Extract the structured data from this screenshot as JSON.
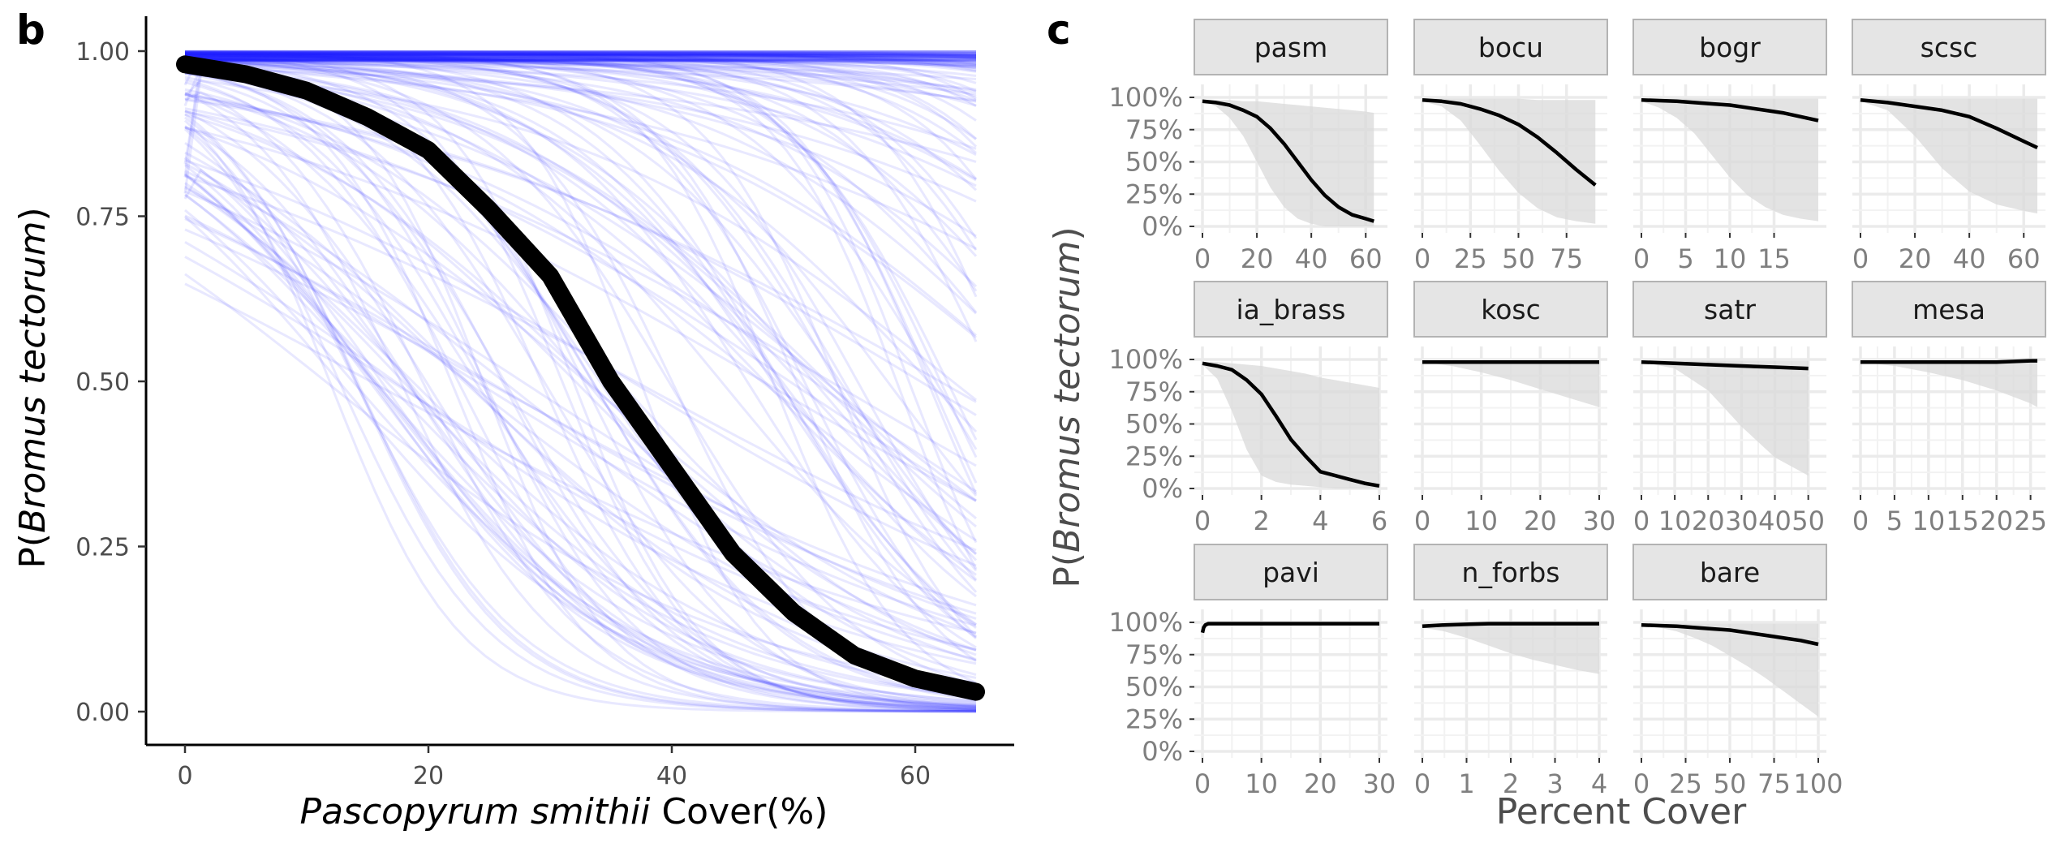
{
  "panel_b": {
    "letter": "b",
    "x_axis_label": {
      "species": "Pascopyrum smithii",
      "suffix": " Cover(%)"
    },
    "y_axis_label": {
      "prefix": "P(",
      "species": "Bromus tectorum",
      "suffix": ")"
    }
  },
  "panel_c": {
    "letter": "c",
    "x_axis_label": "Percent Cover",
    "y_axis_label": {
      "prefix": "P(",
      "species": "Bromus tectorum",
      "suffix": ")"
    }
  },
  "chart_data": [
    {
      "type": "line",
      "panel": "b",
      "xlabel": "Pascopyrum smithii Cover(%)",
      "ylabel": "P(Bromus tectorum)",
      "xlim": [
        0,
        65
      ],
      "ylim": [
        0,
        1
      ],
      "x_ticks": [
        "0",
        "20",
        "40",
        "60"
      ],
      "y_ticks": [
        "0.00",
        "0.25",
        "0.50",
        "0.75",
        "1.00"
      ],
      "colors": {
        "draws": "#1f1fff",
        "mean": "#000000"
      },
      "posterior_draws": {
        "count": 200,
        "color": "#1f1fff",
        "opacity": 0.1,
        "seed": 7
      },
      "mean_curve": {
        "x": [
          0,
          5,
          10,
          15,
          20,
          25,
          30,
          35,
          40,
          45,
          50,
          55,
          60,
          65
        ],
        "y": [
          0.98,
          0.965,
          0.94,
          0.9,
          0.85,
          0.76,
          0.66,
          0.5,
          0.37,
          0.24,
          0.15,
          0.085,
          0.05,
          0.03
        ]
      }
    },
    {
      "type": "line",
      "panel": "c",
      "layout": "facet-grid-3x4",
      "xlabel": "Percent Cover",
      "ylabel": "P(Bromus tectorum)",
      "ylim": [
        0,
        1
      ],
      "y_ticks": [
        "0%",
        "25%",
        "50%",
        "75%",
        "100%"
      ],
      "colors": {
        "strip": "#e5e5e5",
        "ribbon": "#d9d9d9",
        "line": "#000000"
      },
      "facets": [
        {
          "name": "pasm",
          "xlim": [
            0,
            65
          ],
          "x_ticks": [
            0,
            20,
            40,
            60
          ],
          "x_tick_labels": [
            "0",
            "20",
            "40",
            "60"
          ],
          "x": [
            0,
            5,
            10,
            15,
            20,
            25,
            30,
            35,
            40,
            45,
            50,
            55,
            60,
            63
          ],
          "y": [
            0.97,
            0.96,
            0.94,
            0.9,
            0.85,
            0.76,
            0.64,
            0.5,
            0.36,
            0.24,
            0.15,
            0.09,
            0.06,
            0.04
          ],
          "lower": [
            0.97,
            0.93,
            0.84,
            0.7,
            0.5,
            0.3,
            0.15,
            0.06,
            0.02,
            0.0,
            0.0,
            0.0,
            0.0,
            0.0
          ],
          "upper": [
            0.98,
            0.98,
            0.98,
            0.97,
            0.97,
            0.96,
            0.95,
            0.94,
            0.93,
            0.92,
            0.91,
            0.9,
            0.89,
            0.88
          ]
        },
        {
          "name": "bocu",
          "xlim": [
            0,
            92
          ],
          "x_ticks": [
            0,
            25,
            50,
            75
          ],
          "x_tick_labels": [
            "0",
            "25",
            "50",
            "75"
          ],
          "x": [
            0,
            10,
            20,
            30,
            40,
            50,
            60,
            70,
            80,
            90
          ],
          "y": [
            0.98,
            0.97,
            0.95,
            0.91,
            0.86,
            0.79,
            0.69,
            0.57,
            0.44,
            0.32
          ],
          "lower": [
            0.97,
            0.93,
            0.82,
            0.63,
            0.43,
            0.26,
            0.14,
            0.07,
            0.04,
            0.02
          ],
          "upper": [
            0.99,
            0.99,
            0.99,
            0.99,
            0.99,
            0.99,
            0.98,
            0.98,
            0.98,
            0.98
          ]
        },
        {
          "name": "bogr",
          "xlim": [
            0,
            20
          ],
          "x_ticks": [
            0,
            5,
            10,
            15
          ],
          "x_tick_labels": [
            "0",
            "5",
            "10",
            "15"
          ],
          "x": [
            0,
            2,
            4,
            6,
            8,
            10,
            12,
            14,
            16,
            18,
            20
          ],
          "y": [
            0.98,
            0.975,
            0.97,
            0.96,
            0.95,
            0.94,
            0.92,
            0.9,
            0.88,
            0.85,
            0.82
          ],
          "lower": [
            0.97,
            0.92,
            0.84,
            0.72,
            0.55,
            0.38,
            0.24,
            0.15,
            0.09,
            0.06,
            0.04
          ],
          "upper": [
            0.99,
            0.99,
            0.99,
            0.99,
            0.99,
            0.99,
            0.99,
            0.99,
            0.99,
            0.99,
            0.99
          ]
        },
        {
          "name": "scsc",
          "xlim": [
            0,
            65
          ],
          "x_ticks": [
            0,
            20,
            40,
            60
          ],
          "x_tick_labels": [
            "0",
            "20",
            "40",
            "60"
          ],
          "x": [
            0,
            10,
            20,
            30,
            40,
            50,
            60,
            65
          ],
          "y": [
            0.98,
            0.96,
            0.93,
            0.9,
            0.85,
            0.76,
            0.66,
            0.61
          ],
          "lower": [
            0.97,
            0.9,
            0.7,
            0.45,
            0.27,
            0.17,
            0.12,
            0.1
          ],
          "upper": [
            0.99,
            0.99,
            0.99,
            0.99,
            0.99,
            0.99,
            0.99,
            0.99
          ]
        },
        {
          "name": "ia_brass",
          "xlim": [
            0,
            6
          ],
          "x_ticks": [
            0,
            2,
            4,
            6
          ],
          "x_tick_labels": [
            "0",
            "2",
            "4",
            "6"
          ],
          "x": [
            0,
            0.5,
            1,
            1.5,
            2,
            2.5,
            3,
            3.5,
            4,
            4.5,
            5,
            5.5,
            6
          ],
          "y": [
            0.97,
            0.95,
            0.92,
            0.84,
            0.73,
            0.56,
            0.38,
            0.25,
            0.13,
            0.1,
            0.07,
            0.04,
            0.02
          ],
          "lower": [
            0.96,
            0.85,
            0.6,
            0.3,
            0.1,
            0.05,
            0.03,
            0.02,
            0.01,
            0.0,
            0.0,
            0.0,
            0.0
          ],
          "upper": [
            0.98,
            0.98,
            0.97,
            0.96,
            0.95,
            0.93,
            0.91,
            0.89,
            0.86,
            0.84,
            0.82,
            0.8,
            0.78
          ]
        },
        {
          "name": "kosc",
          "xlim": [
            0,
            30
          ],
          "x_ticks": [
            0,
            10,
            20,
            30
          ],
          "x_tick_labels": [
            "0",
            "10",
            "20",
            "30"
          ],
          "x": [
            0,
            5,
            10,
            15,
            20,
            25,
            30
          ],
          "y": [
            0.98,
            0.98,
            0.98,
            0.98,
            0.98,
            0.98,
            0.98
          ],
          "lower": [
            0.98,
            0.95,
            0.9,
            0.84,
            0.77,
            0.7,
            0.63
          ],
          "upper": [
            0.99,
            0.99,
            0.99,
            0.99,
            0.99,
            0.99,
            0.99
          ]
        },
        {
          "name": "satr",
          "xlim": [
            0,
            53
          ],
          "x_ticks": [
            0,
            10,
            20,
            30,
            40,
            50
          ],
          "x_tick_labels": [
            "0",
            "10",
            "20",
            "30",
            "40",
            "50"
          ],
          "x": [
            0,
            10,
            20,
            30,
            40,
            50
          ],
          "y": [
            0.98,
            0.97,
            0.96,
            0.95,
            0.94,
            0.93
          ],
          "lower": [
            0.98,
            0.93,
            0.76,
            0.48,
            0.24,
            0.1
          ],
          "upper": [
            0.99,
            0.99,
            0.99,
            0.99,
            0.99,
            0.99
          ]
        },
        {
          "name": "mesa",
          "xlim": [
            0,
            26
          ],
          "x_ticks": [
            0,
            5,
            10,
            15,
            20,
            25
          ],
          "x_tick_labels": [
            "0",
            "5",
            "10",
            "15",
            "20",
            "25"
          ],
          "x": [
            0,
            5,
            10,
            15,
            20,
            25,
            26
          ],
          "y": [
            0.98,
            0.98,
            0.98,
            0.98,
            0.98,
            0.99,
            0.99
          ],
          "lower": [
            0.98,
            0.95,
            0.9,
            0.84,
            0.76,
            0.66,
            0.63
          ],
          "upper": [
            0.99,
            0.99,
            0.99,
            0.99,
            0.99,
            0.99,
            0.99
          ]
        },
        {
          "name": "pavi",
          "xlim": [
            0,
            30
          ],
          "x_ticks": [
            0,
            10,
            20,
            30
          ],
          "x_tick_labels": [
            "0",
            "10",
            "20",
            "30"
          ],
          "x": [
            0,
            0.2,
            0.5,
            1,
            2,
            5,
            10,
            20,
            30
          ],
          "y": [
            0.92,
            0.96,
            0.98,
            0.99,
            0.99,
            0.99,
            0.99,
            0.99,
            0.99
          ],
          "lower": [
            0.92,
            0.96,
            0.98,
            0.99,
            0.99,
            0.99,
            0.99,
            0.99,
            0.99
          ],
          "upper": [
            0.92,
            0.96,
            0.98,
            0.99,
            0.99,
            0.99,
            0.99,
            0.99,
            0.99
          ]
        },
        {
          "name": "n_forbs",
          "xlim": [
            0,
            4
          ],
          "x_ticks": [
            0,
            1,
            2,
            3,
            4
          ],
          "x_tick_labels": [
            "0",
            "1",
            "2",
            "3",
            "4"
          ],
          "x": [
            0,
            0.5,
            1,
            1.5,
            2,
            2.5,
            3,
            3.5,
            4
          ],
          "y": [
            0.97,
            0.98,
            0.985,
            0.99,
            0.99,
            0.99,
            0.99,
            0.99,
            0.99
          ],
          "lower": [
            0.96,
            0.93,
            0.88,
            0.82,
            0.76,
            0.71,
            0.67,
            0.63,
            0.6
          ],
          "upper": [
            0.99,
            0.99,
            0.99,
            0.99,
            0.99,
            0.99,
            0.99,
            0.99,
            0.99
          ]
        },
        {
          "name": "bare",
          "xlim": [
            0,
            100
          ],
          "x_ticks": [
            0,
            25,
            50,
            75,
            100
          ],
          "x_tick_labels": [
            "0",
            "25",
            "50",
            "75",
            "100"
          ],
          "x": [
            0,
            10,
            20,
            30,
            40,
            50,
            60,
            70,
            80,
            90,
            100
          ],
          "y": [
            0.98,
            0.975,
            0.97,
            0.96,
            0.95,
            0.94,
            0.92,
            0.9,
            0.88,
            0.86,
            0.83
          ],
          "lower": [
            0.98,
            0.96,
            0.93,
            0.88,
            0.82,
            0.74,
            0.66,
            0.57,
            0.47,
            0.37,
            0.27
          ],
          "upper": [
            0.99,
            0.99,
            0.99,
            0.99,
            0.99,
            0.99,
            0.99,
            0.99,
            0.99,
            0.99,
            0.99
          ]
        }
      ]
    }
  ]
}
